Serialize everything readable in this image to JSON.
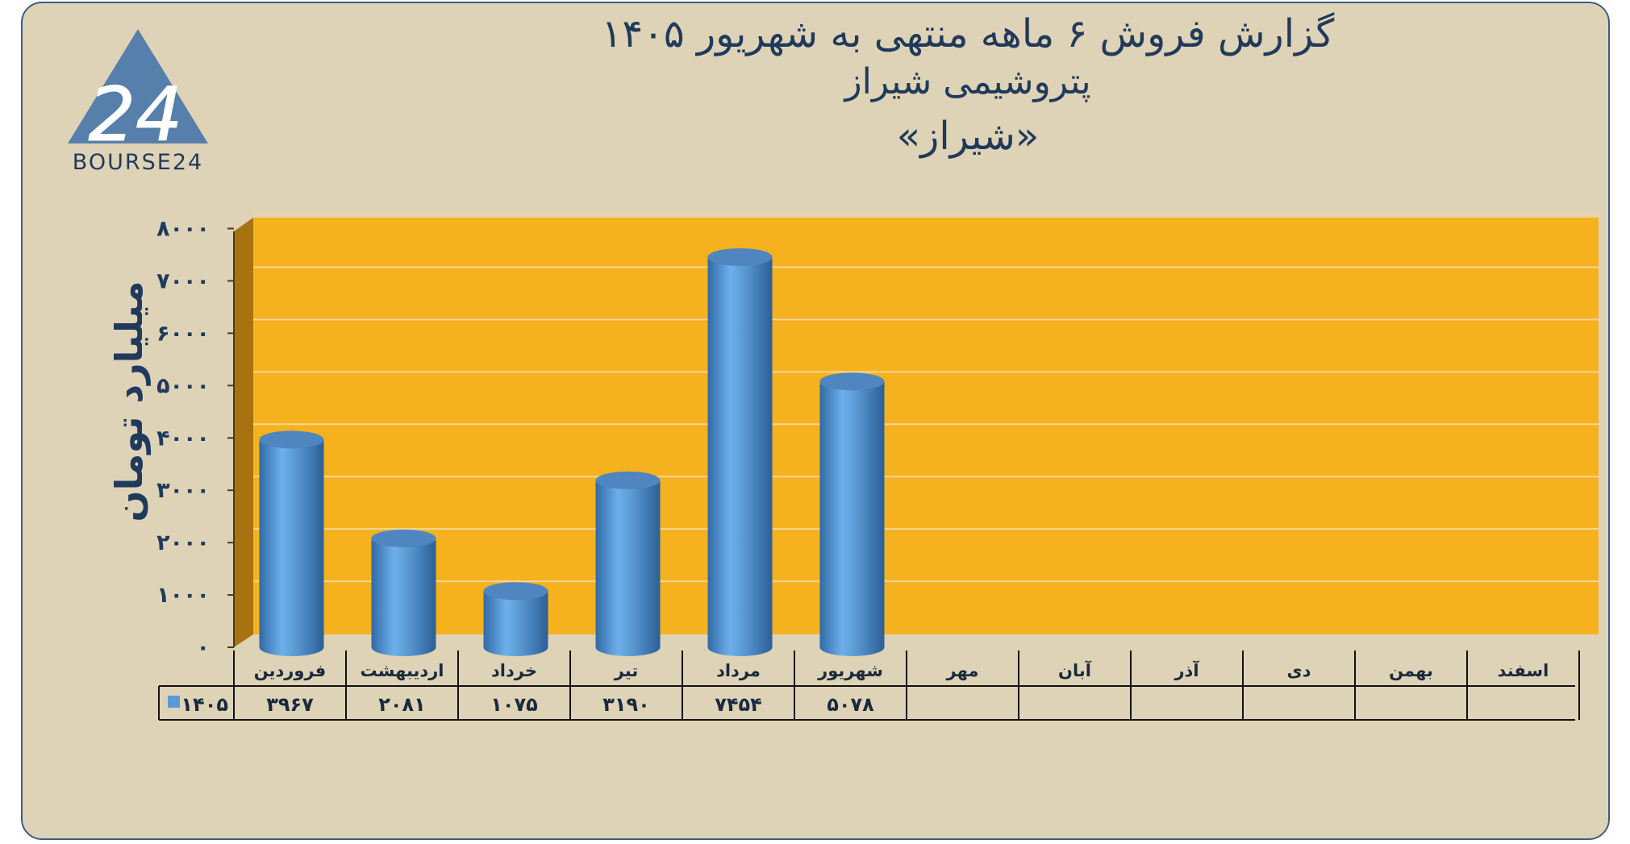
{
  "logo": {
    "text": "BOURSE24",
    "mark": "24"
  },
  "title": {
    "line1": "گزارش  فروش ۶ ماهه منتهی به شهریور ۱۴۰۵",
    "line2": "پتروشیمی شیراز",
    "line3": "«شیراز»"
  },
  "colors": {
    "background": "#dfd3b7",
    "plot_area": "#f6b11e",
    "plot_side_wall": "#a8720f",
    "bar": "#5b9bd5",
    "text": "#1f3a5b",
    "frame_border": "#3b5f86"
  },
  "chart_data": {
    "type": "bar",
    "style": "3d-cylinder",
    "ylabel": "میلیارد تومان",
    "xlabel": "",
    "categories": [
      "فروردین",
      "اردیبهشت",
      "خرداد",
      "تیر",
      "مرداد",
      "شهریور",
      "مهر",
      "آبان",
      "آذر",
      "دی",
      "بهمن",
      "اسفند"
    ],
    "series": [
      {
        "name": "۱۴۰۵",
        "values": [
          3967,
          2081,
          1075,
          3190,
          7454,
          5078,
          null,
          null,
          null,
          null,
          null,
          null
        ],
        "value_labels": [
          "۳۹۶۷",
          "۲۰۸۱",
          "۱۰۷۵",
          "۳۱۹۰",
          "۷۴۵۴",
          "۵۰۷۸",
          "",
          "",
          "",
          "",
          "",
          ""
        ]
      }
    ],
    "ylim": [
      0,
      8000
    ],
    "yticks": [
      0,
      1000,
      2000,
      3000,
      4000,
      5000,
      6000,
      7000,
      8000
    ],
    "ytick_labels": [
      "۰",
      "۱۰۰۰",
      "۲۰۰۰",
      "۳۰۰۰",
      "۴۰۰۰",
      "۵۰۰۰",
      "۶۰۰۰",
      "۷۰۰۰",
      "۸۰۰۰"
    ],
    "grid": true,
    "legend": "data-table"
  }
}
